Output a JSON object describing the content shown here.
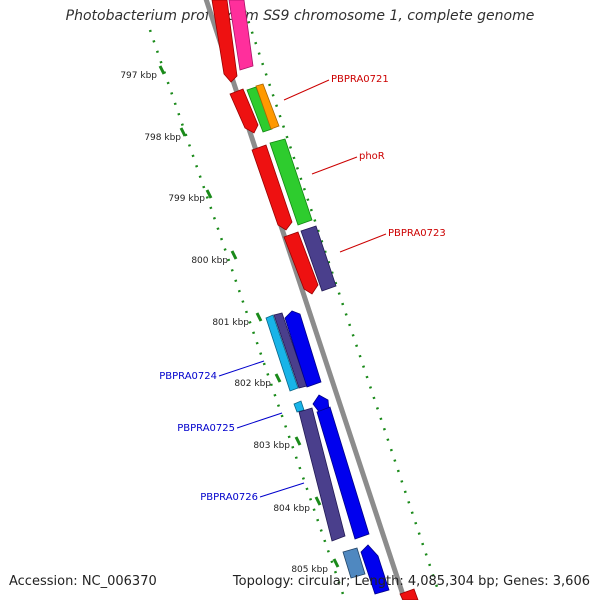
{
  "map": {
    "title": "Photobacterium profundum SS9 chromosome 1, complete genome",
    "accession": "Accession: NC_006370",
    "stats": "Topology: circular; Length: 4,085,304 bp; Genes: 3,606",
    "colors": {
      "backbone": "#888888",
      "ticks": "#1a8a1a",
      "forward_labels": "#cc0000",
      "reverse_labels": "#0000cc"
    }
  },
  "ruler": [
    {
      "label": "797 kbp",
      "kbp": 797
    },
    {
      "label": "798 kbp",
      "kbp": 798
    },
    {
      "label": "799 kbp",
      "kbp": 799
    },
    {
      "label": "800 kbp",
      "kbp": 800
    },
    {
      "label": "801 kbp",
      "kbp": 801
    },
    {
      "label": "802 kbp",
      "kbp": 802
    },
    {
      "label": "803 kbp",
      "kbp": 803
    },
    {
      "label": "804 kbp",
      "kbp": 804
    },
    {
      "label": "805 kbp",
      "kbp": 805
    }
  ],
  "gene_labels": [
    {
      "text": "PBPRA0721",
      "strand": "forward"
    },
    {
      "text": "phoR",
      "strand": "forward"
    },
    {
      "text": "PBPRA0723",
      "strand": "forward"
    },
    {
      "text": "PBPRA0724",
      "strand": "reverse"
    },
    {
      "text": "PBPRA0725",
      "strand": "reverse"
    },
    {
      "text": "PBPRA0726",
      "strand": "reverse"
    }
  ]
}
